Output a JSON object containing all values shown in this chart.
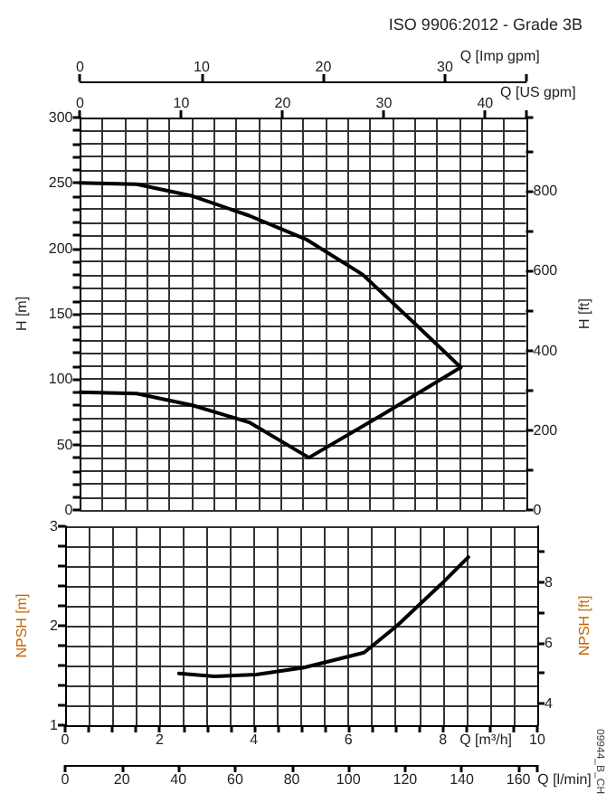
{
  "chart_data": [
    {
      "type": "line",
      "title": "ISO 9906:2012 - Grade 3B",
      "ylabel": "H [m]",
      "y2label": "H [ft]",
      "xlabel": "Q [US gpm]",
      "x2label": "Q [Imp gpm]",
      "grid": true,
      "line_style": "solid",
      "marker": "none",
      "xlim": [
        0,
        44.03
      ],
      "xticks": [
        0,
        10,
        20,
        30,
        40
      ],
      "ylim": [
        0,
        300
      ],
      "yticks": [
        0,
        {
          "value": 10,
          "label": null
        },
        {
          "value": 20,
          "label": null
        },
        {
          "value": 30,
          "label": null
        },
        {
          "value": 40,
          "label": null
        },
        50,
        {
          "value": 60,
          "label": null
        },
        {
          "value": 70,
          "label": null
        },
        {
          "value": 80,
          "label": null
        },
        {
          "value": 90,
          "label": null
        },
        100,
        {
          "value": 110,
          "label": null
        },
        {
          "value": 120,
          "label": null
        },
        {
          "value": 130,
          "label": null
        },
        {
          "value": 140,
          "label": null
        },
        150,
        {
          "value": 160,
          "label": null
        },
        {
          "value": 170,
          "label": null
        },
        {
          "value": 180,
          "label": null
        },
        {
          "value": 190,
          "label": null
        },
        200,
        {
          "value": 210,
          "label": null
        },
        {
          "value": 220,
          "label": null
        },
        {
          "value": 230,
          "label": null
        },
        {
          "value": 240,
          "label": null
        },
        250,
        {
          "value": 260,
          "label": null
        },
        {
          "value": 270,
          "label": null
        },
        {
          "value": 280,
          "label": null
        },
        {
          "value": 290,
          "label": null
        },
        300
      ],
      "y2lim": [
        0,
        984.25
      ],
      "y2ticks": [
        0,
        {
          "value": 100,
          "label": null
        },
        200,
        {
          "value": 300,
          "label": null
        },
        400,
        {
          "value": 500,
          "label": null
        },
        600,
        {
          "value": 700,
          "label": null
        },
        800,
        {
          "value": 900,
          "label": null
        }
      ],
      "x2lim": [
        0,
        36.66
      ],
      "x2ticks": [
        0,
        10,
        20,
        30
      ],
      "series": [
        {
          "color": "#000000",
          "x": [
            0,
            5.6,
            11.1,
            16.7,
            22.3,
            27.9,
            33.4,
            37.6,
            30.1,
            22.6,
            16.7,
            11.1,
            5.6,
            0
          ],
          "values": [
            250,
            249,
            240,
            225,
            207,
            180,
            140,
            109,
            74,
            40,
            67,
            80,
            89,
            90
          ]
        }
      ]
    },
    {
      "type": "line",
      "ylabel": "NPSH [m]",
      "y2label": "NPSH [ft]",
      "xlabel": "Q [m³/h]",
      "x2label": "Q [l/min]",
      "grid": true,
      "line_style": "solid",
      "marker": "none",
      "annotations": [
        "09944_B_CH"
      ],
      "xlim": [
        0,
        10
      ],
      "xticks": [
        0,
        {
          "value": 0.5,
          "label": null
        },
        {
          "value": 1,
          "label": null
        },
        {
          "value": 1.5,
          "label": null
        },
        2,
        {
          "value": 2.5,
          "label": null
        },
        {
          "value": 3,
          "label": null
        },
        {
          "value": 3.5,
          "label": null
        },
        4,
        {
          "value": 4.5,
          "label": null
        },
        {
          "value": 5,
          "label": null
        },
        {
          "value": 5.5,
          "label": null
        },
        6,
        {
          "value": 6.5,
          "label": null
        },
        {
          "value": 7,
          "label": null
        },
        {
          "value": 7.5,
          "label": null
        },
        8,
        {
          "value": 8.5,
          "label": null
        },
        {
          "value": 9,
          "label": null
        },
        {
          "value": 9.5,
          "label": null
        },
        10
      ],
      "ylim": [
        1,
        3
      ],
      "yticks": [
        1,
        {
          "value": 1.2,
          "label": null
        },
        {
          "value": 1.4,
          "label": null
        },
        {
          "value": 1.6,
          "label": null
        },
        {
          "value": 1.8,
          "label": null
        },
        2,
        {
          "value": 2.2,
          "label": null
        },
        {
          "value": 2.4,
          "label": null
        },
        {
          "value": 2.6,
          "label": null
        },
        {
          "value": 2.8,
          "label": null
        },
        3
      ],
      "y2lim": [
        3.281,
        9.843
      ],
      "y2ticks": [
        4,
        {
          "value": 5,
          "label": null
        },
        6,
        {
          "value": 7,
          "label": null
        },
        8,
        {
          "value": 9,
          "label": null
        }
      ],
      "x2lim": [
        0,
        166.67
      ],
      "x2ticks": [
        0,
        20,
        40,
        60,
        80,
        100,
        120,
        140,
        160
      ],
      "series": [
        {
          "color": "#000000",
          "x": [
            2.41,
            3.16,
            4.05,
            5.06,
            6.33,
            7.03,
            7.97,
            8.54
          ],
          "values": [
            1.52,
            1.49,
            1.51,
            1.58,
            1.73,
            2.0,
            2.42,
            2.69
          ]
        }
      ]
    }
  ]
}
